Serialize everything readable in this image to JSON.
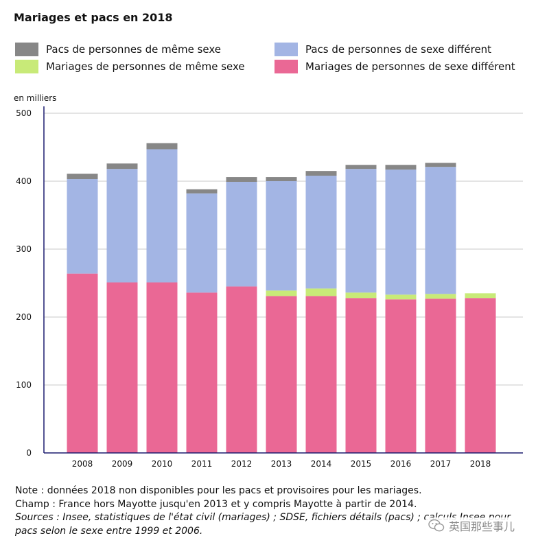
{
  "title": "Mariages et pacs en 2018",
  "unit_label": "en milliers",
  "colors": {
    "pacs_meme": "#878787",
    "pacs_diff": "#a3b5e4",
    "mar_meme": "#c8ea78",
    "mar_diff": "#ea6895",
    "axis": "#1a1a6e",
    "grid": "#c8c8c8"
  },
  "legend": [
    {
      "label": "Pacs de personnes de même sexe",
      "series": "pacs_meme"
    },
    {
      "label": "Pacs de personnes de sexe différent",
      "series": "pacs_diff"
    },
    {
      "label": "Mariages de personnes de même sexe",
      "series": "mar_meme"
    },
    {
      "label": "Mariages de personnes de sexe différent",
      "series": "mar_diff"
    }
  ],
  "chart_data": {
    "type": "bar",
    "stacked": true,
    "title": "Mariages et pacs en 2018",
    "ylabel": "en milliers",
    "xlabel": "",
    "ylim": [
      0,
      500
    ],
    "yticks": [
      0,
      100,
      200,
      300,
      400,
      500
    ],
    "grid": true,
    "legend_position": "top",
    "categories": [
      "2008",
      "2009",
      "2010",
      "2011",
      "2012",
      "2013",
      "2014",
      "2015",
      "2016",
      "2017",
      "2018"
    ],
    "series": [
      {
        "key": "mar_diff",
        "name": "Mariages de personnes de sexe différent",
        "values": [
          264,
          251,
          251,
          236,
          245,
          231,
          231,
          228,
          226,
          227,
          228
        ]
      },
      {
        "key": "mar_meme",
        "name": "Mariages de personnes de même sexe",
        "values": [
          0,
          0,
          0,
          0,
          0,
          8,
          11,
          8,
          7,
          7,
          7
        ]
      },
      {
        "key": "pacs_diff",
        "name": "Pacs de personnes de sexe différent",
        "values": [
          139,
          167,
          196,
          146,
          154,
          161,
          166,
          182,
          184,
          187,
          0
        ]
      },
      {
        "key": "pacs_meme",
        "name": "Pacs de personnes de même sexe",
        "values": [
          8,
          8,
          9,
          6,
          7,
          6,
          7,
          6,
          7,
          6,
          0
        ]
      }
    ]
  },
  "notes": {
    "note": "Note : données 2018 non disponibles pour les pacs et provisoires pour les mariages.",
    "champ": "Champ : France hors Mayotte jusqu'en 2013 et y compris Mayotte à partir de 2014.",
    "sources": "Sources : Insee, statistiques de l'état civil (mariages) ; SDSE, fichiers détails (pacs) ; calculs Insee pour",
    "sources2": "pacs selon le sexe entre 1999 et 2006."
  },
  "watermark": {
    "text": "英国那些事儿",
    "icon": "wechat-icon"
  }
}
